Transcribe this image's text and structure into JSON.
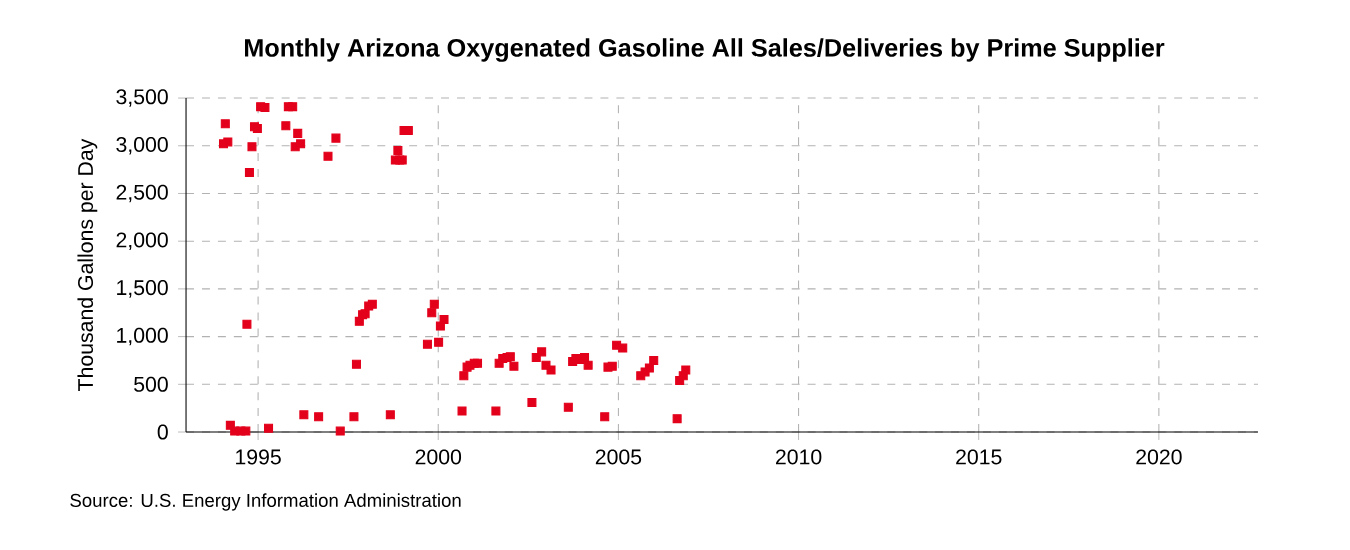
{
  "chart_data": {
    "type": "scatter",
    "title": "Monthly Arizona Oxygenated Gasoline All Sales/Deliveries by Prime Supplier",
    "ylabel": "Thousand Gallons per Day",
    "annotations": [
      "Source: U.S. Energy Information Administration"
    ],
    "xlim": [
      1993,
      2022.75
    ],
    "xticks": [
      1995,
      2000,
      2005,
      2010,
      2015,
      2020
    ],
    "ylim": [
      0,
      3500
    ],
    "yticks": [
      0,
      {
        "value": 500,
        "label": "500"
      },
      {
        "value": 1000,
        "label": "1,000"
      },
      {
        "value": 1500,
        "label": "1,500"
      },
      {
        "value": 2000,
        "label": "2,000"
      },
      {
        "value": 2500,
        "label": "2,500"
      },
      {
        "value": 3000,
        "label": "3,000"
      },
      {
        "value": 3500,
        "label": "3,500"
      }
    ],
    "grid": true,
    "marker": "square",
    "series": [
      {
        "color": "#e3001b",
        "x": [
          1994.09,
          1994.04,
          1994.16,
          1994.23,
          1994.35,
          1994.52,
          1994.66,
          1994.69,
          1994.76,
          1994.83,
          1994.9,
          1994.98,
          1995.07,
          1995.19,
          1995.29,
          1995.77,
          1995.84,
          1995.96,
          1996.1,
          1996.03,
          1996.18,
          1996.27,
          1996.68,
          1996.94,
          1997.16,
          1997.28,
          1997.66,
          1997.73,
          1997.81,
          1997.9,
          1997.97,
          1998.07,
          1998.17,
          1998.67,
          1998.81,
          1998.88,
          1998.93,
          1999.0,
          1999.05,
          1999.17,
          1999.7,
          1999.82,
          1999.89,
          2000.01,
          2000.06,
          2000.16,
          2000.66,
          2000.71,
          2000.8,
          2000.88,
          2001.0,
          2001.09,
          2001.6,
          2001.69,
          2001.79,
          2001.91,
          2002.0,
          2002.1,
          2002.6,
          2002.72,
          2002.87,
          2002.99,
          2003.13,
          2003.61,
          2003.73,
          2003.82,
          2003.94,
          2004.06,
          2004.16,
          2004.62,
          2004.71,
          2004.83,
          2004.95,
          2005.12,
          2005.62,
          2005.74,
          2005.86,
          2005.98,
          2006.63,
          2006.7,
          2006.8,
          2006.87
        ],
        "values": [
          3230,
          3020,
          3040,
          70,
          10,
          10,
          10,
          1130,
          2720,
          2990,
          3200,
          3180,
          3410,
          3400,
          40,
          3210,
          3410,
          3410,
          3130,
          2990,
          3020,
          180,
          160,
          2890,
          3080,
          10,
          160,
          710,
          1160,
          1230,
          1240,
          1320,
          1340,
          180,
          2850,
          2950,
          2850,
          2850,
          3160,
          3160,
          920,
          1250,
          1340,
          940,
          1110,
          1180,
          220,
          590,
          680,
          700,
          720,
          720,
          220,
          720,
          770,
          780,
          790,
          690,
          310,
          780,
          840,
          700,
          650,
          260,
          740,
          770,
          760,
          780,
          700,
          160,
          680,
          690,
          910,
          880,
          590,
          630,
          670,
          750,
          140,
          540,
          590,
          650
        ]
      }
    ]
  }
}
